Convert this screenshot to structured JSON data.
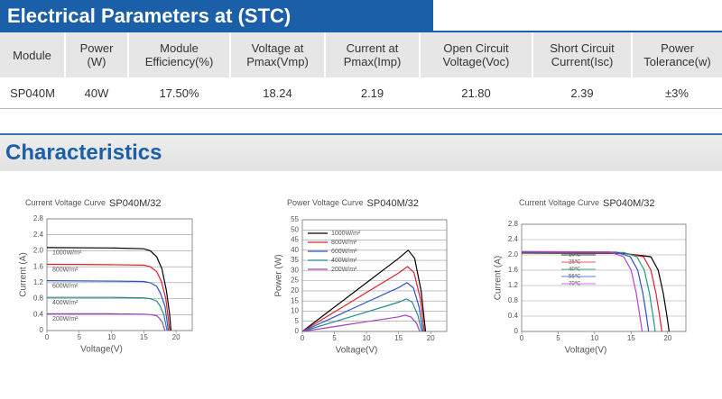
{
  "section_title": "Electrical Parameters at (STC)",
  "table": {
    "headers": [
      "Module",
      "Power\n(W)",
      "Module\nEfficiency(%)",
      "Voltage at\nPmax(Vmp)",
      "Current at\nPmax(Imp)",
      "Open Circuit\nVoltage(Voc)",
      "Short Circuit\nCurrent(Isc)",
      "Power\nTolerance(w)"
    ],
    "rows": [
      [
        "SP040M",
        "40W",
        "17.50%",
        "18.24",
        "2.19",
        "21.80",
        "2.39",
        "±3%"
      ]
    ]
  },
  "characteristics_title": "Characteristics",
  "chart_data": [
    {
      "type": "line",
      "title": "Current Voltage Curve",
      "model": "SP040M/32",
      "x_label": "Voltage(V)",
      "y_label": "Current (A)",
      "xlim": [
        0,
        22.5
      ],
      "ylim": [
        0,
        2.8
      ],
      "xticks": [
        0,
        5,
        10,
        15,
        20
      ],
      "yticks": [
        0,
        0.4,
        0.8,
        1.2,
        1.6,
        {
          "value": 2,
          "label": "2.0"
        },
        2.4,
        2.8
      ],
      "grid": true,
      "series": [
        {
          "name": "1000W/m²",
          "color": "#000000",
          "x": [
            0,
            10,
            15,
            16,
            17,
            17.8,
            18.5,
            19,
            19.2
          ],
          "values": [
            2.08,
            2.07,
            2.05,
            2.0,
            1.85,
            1.55,
            1.0,
            0.4,
            0
          ]
        },
        {
          "name": "800W/m²",
          "color": "#e0202a",
          "x": [
            0,
            10,
            15,
            16,
            17,
            17.7,
            18.4,
            18.8,
            19.0
          ],
          "values": [
            1.66,
            1.65,
            1.64,
            1.6,
            1.48,
            1.24,
            0.8,
            0.3,
            0
          ]
        },
        {
          "name": "600W/m²",
          "color": "#2a55c8",
          "x": [
            0,
            10,
            15,
            16,
            17,
            17.6,
            18.3,
            18.6,
            18.8
          ],
          "values": [
            1.25,
            1.24,
            1.23,
            1.2,
            1.11,
            0.93,
            0.6,
            0.23,
            0
          ]
        },
        {
          "name": "400W/m²",
          "color": "#1f8a8a",
          "x": [
            0,
            10,
            15,
            16,
            17,
            17.5,
            18.1,
            18.4,
            18.6
          ],
          "values": [
            0.83,
            0.83,
            0.82,
            0.8,
            0.74,
            0.62,
            0.4,
            0.15,
            0
          ]
        },
        {
          "name": "200W/m²",
          "color": "#a040c0",
          "x": [
            0,
            10,
            15,
            16,
            17,
            17.4,
            17.9,
            18.1,
            18.3
          ],
          "values": [
            0.42,
            0.42,
            0.41,
            0.4,
            0.37,
            0.31,
            0.2,
            0.08,
            0
          ]
        }
      ]
    },
    {
      "type": "line",
      "title": "Power Voltage Curve",
      "model": "SP040M/32",
      "x_label": "Voltage(V)",
      "y_label": "Power (W)",
      "xlim": [
        0,
        22.5
      ],
      "ylim": [
        0,
        55
      ],
      "xticks": [
        0,
        5,
        10,
        15,
        20
      ],
      "yticks": [
        0,
        5,
        10,
        15,
        20,
        25,
        30,
        35,
        40,
        45,
        50,
        55
      ],
      "grid": true,
      "series": [
        {
          "name": "1000W/m²",
          "color": "#000000",
          "x": [
            0,
            5,
            10,
            15,
            16.5,
            17.5,
            18.5,
            19.2
          ],
          "values": [
            0,
            12,
            24,
            36,
            40,
            36,
            20,
            0
          ]
        },
        {
          "name": "800W/m²",
          "color": "#e0202a",
          "x": [
            0,
            5,
            10,
            15,
            16.4,
            17.4,
            18.4,
            19.0
          ],
          "values": [
            0,
            9.6,
            19.2,
            28.8,
            32,
            29,
            16,
            0
          ]
        },
        {
          "name": "600W/m²",
          "color": "#2a55c8",
          "x": [
            0,
            5,
            10,
            15,
            16.3,
            17.3,
            18.2,
            18.8
          ],
          "values": [
            0,
            7.2,
            14.4,
            21.6,
            24,
            21.5,
            12,
            0
          ]
        },
        {
          "name": "400W/m²",
          "color": "#1f8a8a",
          "x": [
            0,
            5,
            10,
            15,
            16.2,
            17.1,
            18.0,
            18.6
          ],
          "values": [
            0,
            4.8,
            9.6,
            14.4,
            16,
            14.5,
            8,
            0
          ]
        },
        {
          "name": "200W/m²",
          "color": "#a040c0",
          "x": [
            0,
            5,
            10,
            15,
            16.0,
            16.9,
            17.8,
            18.3
          ],
          "values": [
            0,
            2.4,
            4.8,
            7.2,
            8,
            7.2,
            4,
            0
          ]
        }
      ]
    },
    {
      "type": "line",
      "title": "Current Voltage Curve",
      "model": "SP040M/32",
      "x_label": "Voltage(V)",
      "y_label": "Current (A)",
      "xlim": [
        0,
        22.5
      ],
      "ylim": [
        0,
        2.8
      ],
      "xticks": [
        0,
        5,
        10,
        15,
        20
      ],
      "yticks": [
        0,
        0.4,
        0.8,
        1.2,
        1.6,
        {
          "value": 2,
          "label": "2.0"
        },
        2.4,
        2.8
      ],
      "grid": true,
      "series": [
        {
          "name": "10℃",
          "color": "#000000",
          "x": [
            0,
            14,
            17.7,
            18.7,
            19.4,
            19.9,
            20.2
          ],
          "values": [
            2.05,
            2.04,
            1.95,
            1.6,
            1.0,
            0.4,
            0
          ]
        },
        {
          "name": "25℃",
          "color": "#e0202a",
          "x": [
            0,
            14,
            16.7,
            17.7,
            18.4,
            18.9,
            19.2
          ],
          "values": [
            2.06,
            2.05,
            1.95,
            1.6,
            1.0,
            0.4,
            0
          ]
        },
        {
          "name": "40℃",
          "color": "#1f9a7a",
          "x": [
            0,
            14,
            15.8,
            16.8,
            17.5,
            18.0,
            18.3
          ],
          "values": [
            2.07,
            2.06,
            1.95,
            1.6,
            1.0,
            0.4,
            0
          ]
        },
        {
          "name": "55℃",
          "color": "#2a55c8",
          "x": [
            0,
            13,
            14.9,
            15.9,
            16.6,
            17.1,
            17.4
          ],
          "values": [
            2.08,
            2.07,
            1.95,
            1.6,
            1.0,
            0.4,
            0
          ]
        },
        {
          "name": "70℃",
          "color": "#c040c0",
          "x": [
            0,
            12,
            14.0,
            15.0,
            15.7,
            16.2,
            16.5
          ],
          "values": [
            2.09,
            2.08,
            1.95,
            1.6,
            1.0,
            0.4,
            0
          ]
        }
      ]
    }
  ]
}
